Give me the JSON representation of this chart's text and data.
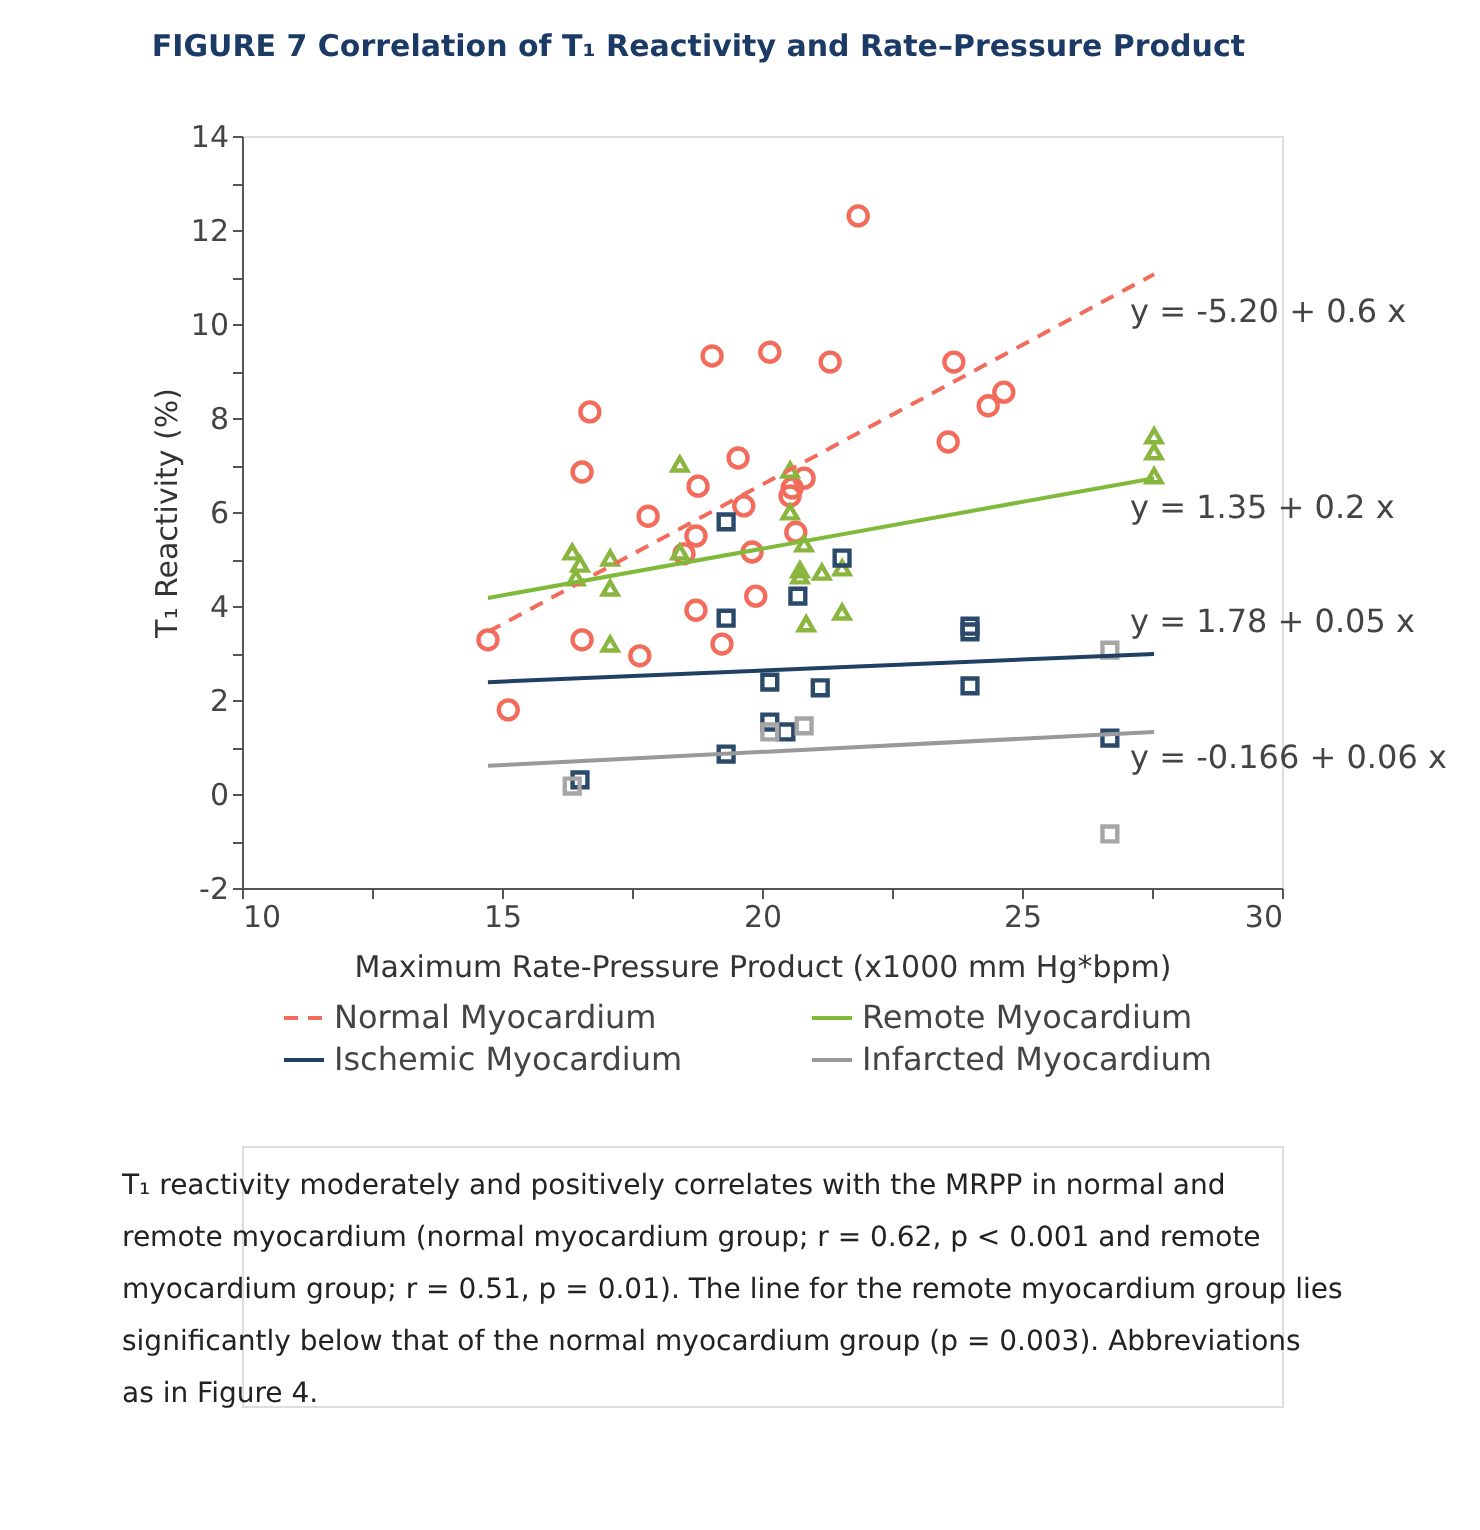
{
  "chart_data": {
    "type": "scatter",
    "title": "FIGURE 7 Correlation of T₁ Reactivity and Rate–Pressure Product",
    "xlabel": "Maximum Rate-Pressure Product (x1000 mm Hg*bpm)",
    "ylabel": "T₁ Reactivity (%)",
    "xlim": [
      10,
      30
    ],
    "xticks": [
      10,
      {
        "value": 12.5,
        "label": null
      },
      15,
      {
        "value": 17.5,
        "label": null
      },
      20,
      {
        "value": 22.5,
        "label": null
      },
      25,
      {
        "value": 27.5,
        "label": null
      },
      30
    ],
    "ylim": [
      -2,
      14
    ],
    "yticks": [
      -2,
      {
        "value": -1,
        "label": null
      },
      0,
      {
        "value": 1,
        "label": null
      },
      2,
      {
        "value": 3,
        "label": null
      },
      4,
      {
        "value": 5,
        "label": null
      },
      6,
      {
        "value": 7,
        "label": null
      },
      8,
      {
        "value": 9,
        "label": null
      },
      10,
      {
        "value": 11,
        "label": null
      },
      12,
      {
        "value": 13,
        "label": null
      },
      14
    ],
    "grid": false,
    "legend": "bottom",
    "series": [
      {
        "marker": "circle",
        "color": "#f26b5b",
        "x": [
          14.73,
          15.12,
          16.54,
          16.69,
          16.54,
          17.65,
          17.81,
          18.73,
          18.5,
          18.73,
          19.04,
          18.77,
          19.23,
          19.54,
          19.65,
          19.81,
          19.88,
          20.15,
          21.85,
          21.31,
          23.69,
          23.58,
          24.35,
          24.65,
          20.54,
          20.58,
          20.81,
          20.65
        ],
        "values": [
          3.28,
          1.79,
          6.85,
          8.13,
          3.28,
          2.94,
          5.91,
          5.49,
          5.11,
          3.91,
          9.32,
          6.55,
          3.19,
          7.15,
          6.13,
          5.15,
          4.21,
          9.4,
          12.3,
          9.19,
          9.19,
          7.49,
          8.26,
          8.55,
          6.34,
          6.51,
          6.72,
          5.57
        ]
      },
      {
        "marker": "triangle",
        "color": "#8ab63f",
        "x": [
          16.35,
          16.5,
          16.42,
          17.08,
          17.08,
          17.08,
          18.42,
          18.42,
          20.54,
          20.54,
          20.81,
          20.73,
          20.73,
          21.15,
          21.54,
          20.85,
          21.54,
          27.54,
          27.54,
          27.54
        ],
        "values": [
          5.15,
          4.89,
          4.6,
          5.02,
          4.38,
          3.19,
          7.02,
          5.15,
          6.89,
          6.0,
          5.32,
          4.64,
          4.77,
          4.72,
          4.81,
          3.62,
          3.87,
          7.62,
          7.28,
          6.77
        ]
      },
      {
        "marker": "square",
        "color": "#2b4a6b",
        "x": [
          19.31,
          19.31,
          20.15,
          20.15,
          20.46,
          19.31,
          16.5,
          21.54,
          20.69,
          21.12,
          24.0,
          24.0,
          24.0,
          26.69
        ],
        "values": [
          5.79,
          3.74,
          2.38,
          1.53,
          1.32,
          0.85,
          0.3,
          5.02,
          4.21,
          2.26,
          3.57,
          3.45,
          2.3,
          1.19
        ]
      },
      {
        "marker": "square",
        "color": "#a6a6a6",
        "x": [
          16.35,
          20.15,
          20.81,
          26.69,
          26.69
        ],
        "values": [
          0.17,
          1.32,
          1.45,
          3.06,
          -0.85
        ]
      },
      {
        "type": "line",
        "name": "Normal Myocardium",
        "color": "#f26b5b",
        "line_style": "dashed",
        "x": [
          14.73,
          27.54
        ],
        "values": [
          3.45,
          11.06
        ]
      },
      {
        "type": "line",
        "name": "Remote Myocardium",
        "color": "#7fba3a",
        "line_style": "solid",
        "x": [
          14.73,
          27.54
        ],
        "values": [
          4.17,
          6.72
        ]
      },
      {
        "type": "line",
        "name": "Ischemic Myocardium",
        "color": "#1f3f63",
        "line_style": "solid",
        "x": [
          14.73,
          27.54
        ],
        "values": [
          2.38,
          2.98
        ]
      },
      {
        "type": "line",
        "name": "Infarcted Myocardium",
        "color": "#999999",
        "line_style": "solid",
        "x": [
          14.73,
          27.54
        ],
        "values": [
          0.6,
          1.32
        ]
      }
    ],
    "annotations": [
      "y = -5.20 + 0.6 x",
      "y = 1.35 + 0.2 x",
      "y = 1.78 + 0.05 x",
      "y = -0.166 + 0.06 x",
      "T₁ reactivity moderately and positively correlates with the MRPP in normal and remote myocardium (normal myocardium group; r = 0.62, p < 0.001 and remote myocardium group; r = 0.51, p = 0.01). The line for the remote myocardium group lies significantly below that of the normal myocardium group (p = 0.003). Abbreviations as in Figure 4."
    ]
  }
}
